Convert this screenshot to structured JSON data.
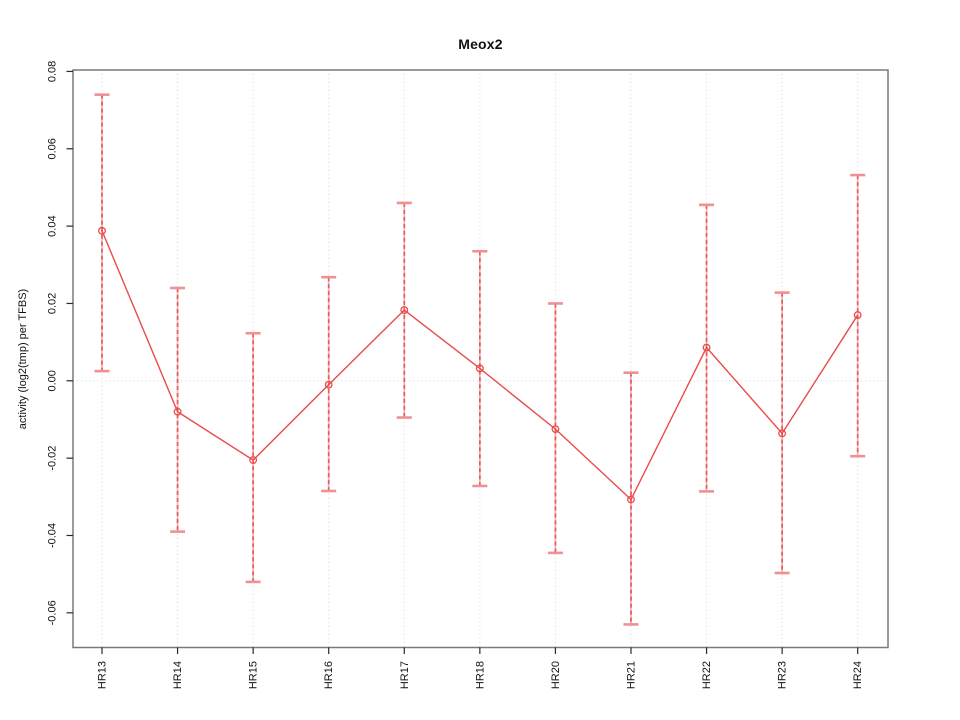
{
  "chart_data": {
    "type": "line",
    "title": "Meox2",
    "xlabel": "",
    "ylabel": "activity (log2(tmp) per TFBS)",
    "categories": [
      "HR13",
      "HR14",
      "HR15",
      "HR16",
      "HR17",
      "HR18",
      "HR20",
      "HR21",
      "HR22",
      "HR23",
      "HR24"
    ],
    "series": [
      {
        "name": "activity",
        "values": [
          0.0388,
          -0.008,
          -0.0205,
          -0.001,
          0.0183,
          0.0032,
          -0.0125,
          -0.0307,
          0.0086,
          -0.0136,
          0.017
        ],
        "lower": [
          0.0025,
          -0.039,
          -0.052,
          -0.0285,
          -0.0095,
          -0.0272,
          -0.0445,
          -0.063,
          -0.0286,
          -0.0497,
          -0.0195
        ],
        "upper": [
          0.074,
          0.024,
          0.0123,
          0.0268,
          0.046,
          0.0335,
          0.02,
          0.0021,
          0.0455,
          0.0228,
          0.0532
        ]
      }
    ],
    "y_ticks": [
      0.08,
      0.06,
      0.04,
      0.02,
      0.0,
      -0.02,
      -0.04,
      -0.06
    ],
    "y_tick_labels": [
      "0.08",
      "0.06",
      "0.04",
      "0.02",
      "0.00",
      "-0.02",
      "-0.04",
      "-0.06"
    ],
    "ylim": [
      -0.069,
      0.081
    ],
    "marker": "open-circle",
    "error_bars": true,
    "grid": {
      "vertical_dotted_per_category": true,
      "horizontal_dotted_zero_line": true,
      "other_horizontal": false
    },
    "legend_position": "none",
    "colors": {
      "series_line": "#ea4b4b",
      "error_bar_dash": "#e35b5b",
      "error_bar_light": "#f6b0b0",
      "error_cap": "#f09090",
      "gridline": "#d9d9d9",
      "frame": "#7a7a7a",
      "tick": "#2a2a2a",
      "text": "#111111"
    }
  }
}
